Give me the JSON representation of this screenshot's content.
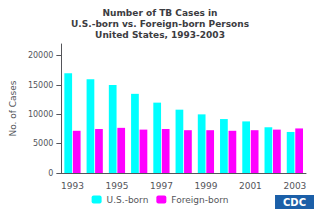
{
  "chart_data": {
    "type": "bar",
    "title": "Number of TB Cases in\nU.S.-born vs. Foreign-born Persons\nUnited States, 1993-2003",
    "categories": [
      "1993",
      null,
      "1995",
      null,
      "1997",
      null,
      "1999",
      null,
      "2001",
      null,
      "2003"
    ],
    "series": [
      {
        "name": "U.S.-born",
        "color": "#00FFFF",
        "values": [
          17000,
          16000,
          15000,
          13500,
          12000,
          10800,
          10000,
          9200,
          8800,
          7800,
          7000
        ]
      },
      {
        "name": "Foreign-born",
        "color": "#FF00FF",
        "values": [
          7200,
          7500,
          7700,
          7400,
          7500,
          7300,
          7300,
          7200,
          7300,
          7400,
          7600
        ]
      }
    ],
    "ylabel": "No. of Cases",
    "ylim": [
      0,
      22000
    ],
    "yticks": [
      0,
      5000,
      10000,
      15000,
      20000
    ],
    "grid": false,
    "legend": "bottom",
    "annotations": [
      "CDC"
    ]
  }
}
